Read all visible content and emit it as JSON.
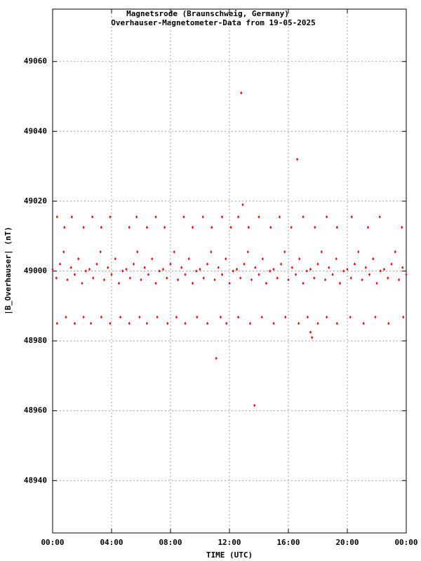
{
  "chart_data": {
    "type": "scatter",
    "title": "Magnetsrode (Braunschweig, Germany)",
    "subtitle": "Overhauser-Magnetometer-Data from 19-05-2025",
    "x_label": "TIME (UTC)",
    "y_label": "|B_Overhauser| (nT)",
    "color": "#ff0000",
    "grid": true,
    "xlim": [
      0,
      24
    ],
    "ylim": [
      48925,
      49075
    ],
    "xticks": [
      {
        "value": 0,
        "label": "00:00"
      },
      {
        "value": 4,
        "label": "04:00"
      },
      {
        "value": 8,
        "label": "08:00"
      },
      {
        "value": 12,
        "label": "12:00"
      },
      {
        "value": 16,
        "label": "16:00"
      },
      {
        "value": 20,
        "label": "20:00"
      },
      {
        "value": 24,
        "label": "00:00"
      }
    ],
    "yticks": [
      48940,
      48960,
      48980,
      49000,
      49020,
      49040,
      49060
    ],
    "x": [
      0,
      0.25,
      0.5,
      0.75,
      1,
      1.25,
      1.5,
      1.75,
      2,
      2.25,
      2.5,
      2.75,
      3,
      3.25,
      3.5,
      3.75,
      4,
      4.25,
      4.5,
      4.75,
      5,
      5.25,
      5.5,
      5.75,
      6,
      6.25,
      6.5,
      6.75,
      7,
      7.25,
      7.5,
      7.75,
      8,
      8.25,
      8.5,
      8.75,
      9,
      9.25,
      9.5,
      9.75,
      10,
      10.25,
      10.5,
      10.75,
      11,
      11.25,
      11.5,
      11.75,
      12,
      12.25,
      12.5,
      12.75,
      13,
      13.25,
      13.5,
      13.75,
      14,
      14.25,
      14.5,
      14.75,
      15,
      15.25,
      15.5,
      15.75,
      16,
      16.25,
      16.5,
      16.75,
      17,
      17.25,
      17.5,
      17.75,
      18,
      18.25,
      18.5,
      18.75,
      19,
      19.25,
      19.5,
      19.75,
      20,
      20.25,
      20.5,
      20.75,
      21,
      21.25,
      21.5,
      21.75,
      22,
      22.25,
      22.5,
      22.75,
      23,
      23.25,
      23.5,
      23.75,
      24,
      0.3,
      0.8,
      1.3,
      2.1,
      2.7,
      3.3,
      3.9,
      5.2,
      5.7,
      6.4,
      7.0,
      7.6,
      8.9,
      9.5,
      10.2,
      10.8,
      11.5,
      12.1,
      12.6,
      13.3,
      14.0,
      14.8,
      15.4,
      16.2,
      17.0,
      17.8,
      18.6,
      19.3,
      20.3,
      21.4,
      22.2,
      23.7,
      0.3,
      0.9,
      1.5,
      2.1,
      2.6,
      3.3,
      3.9,
      4.6,
      5.2,
      5.9,
      6.4,
      7.1,
      7.8,
      8.4,
      9.0,
      9.8,
      10.5,
      11.4,
      11.8,
      12.6,
      13.4,
      14.2,
      15.0,
      15.8,
      16.7,
      17.3,
      18.0,
      18.6,
      19.3,
      20.2,
      21.1,
      21.9,
      22.8,
      23.8,
      12.8,
      16.6,
      12.9,
      11.1,
      13.7,
      17.6,
      17.5
    ],
    "y": [
      49000.5,
      48998,
      49002,
      49005.5,
      48997.5,
      49001,
      48999,
      49003.5,
      48996.5,
      49000,
      49000.5,
      48998,
      49002,
      49005.5,
      48997.5,
      49001,
      48999,
      49003.5,
      48996.5,
      49000,
      49000.5,
      48998,
      49002,
      49005.5,
      48997.5,
      49001,
      48999,
      49003.5,
      48996.5,
      49000,
      49000.5,
      48998,
      49002,
      49005.5,
      48997.5,
      49001,
      48999,
      49003.5,
      48996.5,
      49000,
      49000.5,
      48998,
      49002,
      49005.5,
      48997.5,
      49001,
      48999,
      49003.5,
      48996.5,
      49000,
      49000.5,
      48998,
      49002,
      49005.5,
      48997.5,
      49001,
      48999,
      49003.5,
      48996.5,
      49000,
      49000.5,
      48998,
      49002,
      49005.5,
      48997.5,
      49001,
      48999,
      49003.5,
      48996.5,
      49000,
      49000.5,
      48998,
      49002,
      49005.5,
      48997.5,
      49001,
      48999,
      49003.5,
      48996.5,
      49000,
      49000.5,
      48998,
      49002,
      49005.5,
      48997.5,
      49001,
      48999,
      49003.5,
      48996.5,
      49000,
      49000.5,
      48998,
      49002,
      49005.5,
      48997.5,
      49001,
      48999,
      49015.5,
      49012.5,
      49015.5,
      49012.5,
      49015.5,
      49012.5,
      49015.5,
      49012.5,
      49015.5,
      49012.5,
      49015.5,
      49012.5,
      49015.5,
      49012.5,
      49015.5,
      49012.5,
      49015.5,
      49012.5,
      49015.5,
      49012.5,
      49015.5,
      49012.5,
      49015.5,
      49012.5,
      49015.5,
      49012.5,
      49015.5,
      49012.5,
      49015.5,
      49012.5,
      49015.5,
      49012.5,
      48985,
      48986.8,
      48985,
      48986.8,
      48985,
      48986.8,
      48985,
      48986.8,
      48985,
      48986.8,
      48985,
      48986.8,
      48985,
      48986.8,
      48985,
      48986.8,
      48985,
      48986.8,
      48985,
      48986.8,
      48985,
      48986.8,
      48985,
      48986.8,
      48985,
      48986.8,
      48985,
      48986.8,
      48985,
      48986.8,
      48985,
      48986.8,
      48985,
      48986.8,
      49051,
      49032,
      49019,
      48975,
      48961.5,
      48981,
      48982.5
    ]
  }
}
